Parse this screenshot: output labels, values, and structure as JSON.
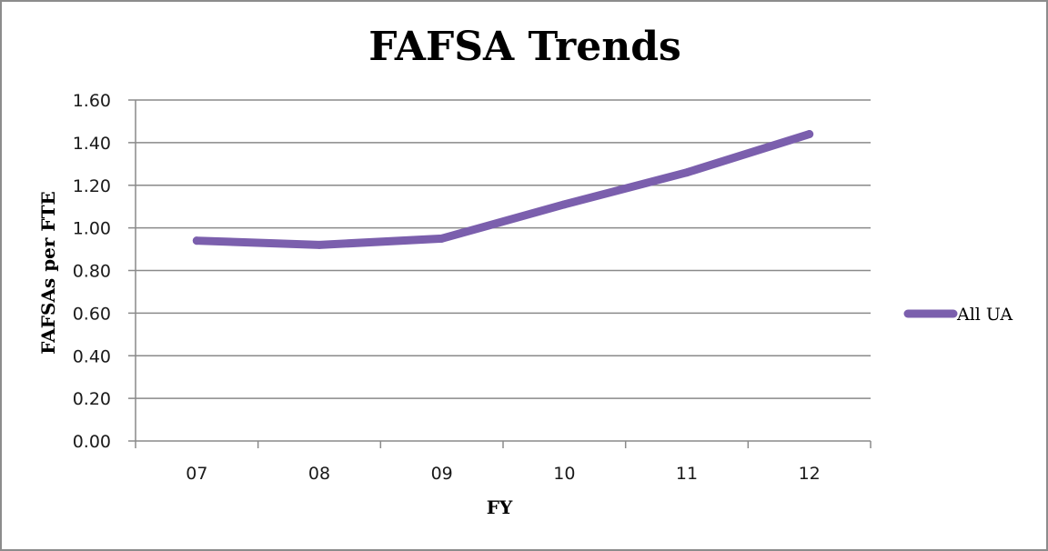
{
  "chart_data": {
    "type": "line",
    "title": "FAFSA Trends",
    "xlabel": "FY",
    "ylabel": "FAFSAs per FTE",
    "categories": [
      "07",
      "08",
      "09",
      "10",
      "11",
      "12"
    ],
    "series": [
      {
        "name": "All UA",
        "values": [
          0.94,
          0.92,
          0.95,
          1.11,
          1.26,
          1.44
        ],
        "color": "#7b5fad"
      }
    ],
    "ylim": [
      0,
      1.6
    ],
    "yticks": [
      0.0,
      0.2,
      0.4,
      0.6,
      0.8,
      1.0,
      1.2,
      1.4,
      1.6
    ],
    "ytick_labels": [
      "0.00",
      "0.20",
      "0.40",
      "0.60",
      "0.80",
      "1.00",
      "1.20",
      "1.40",
      "1.60"
    ],
    "grid": true,
    "legend_position": "right"
  }
}
